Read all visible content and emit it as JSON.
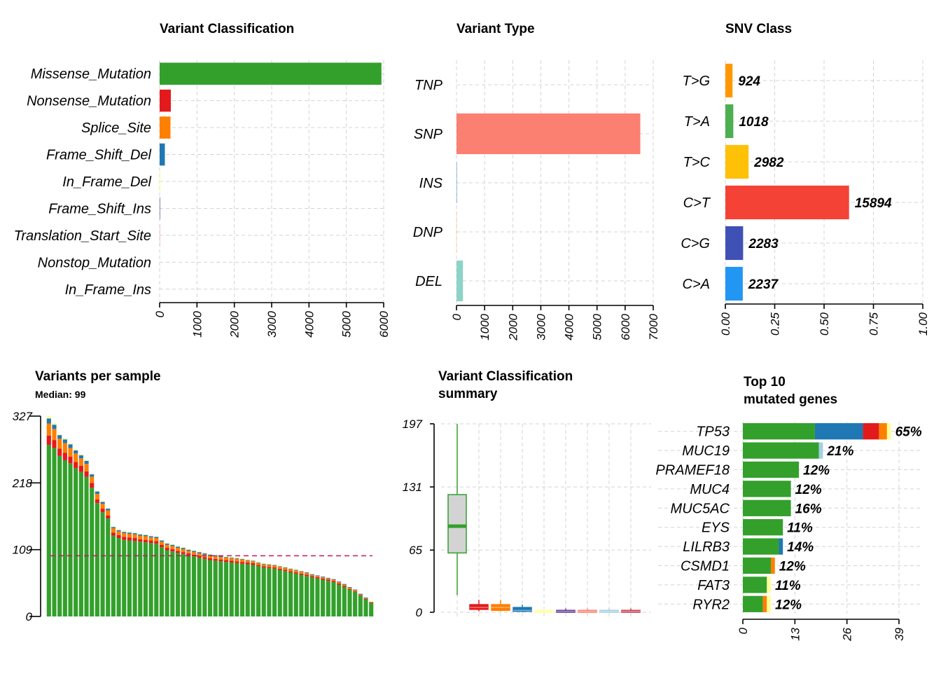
{
  "chart_data": [
    {
      "id": "vc",
      "type": "bar",
      "title": "Variant Classification",
      "categories": [
        "Missense_Mutation",
        "Nonsense_Mutation",
        "Splice_Site",
        "Frame_Shift_Del",
        "In_Frame_Del",
        "Frame_Shift_Ins",
        "Translation_Start_Site",
        "Nonstop_Mutation",
        "In_Frame_Ins"
      ],
      "values": [
        5940,
        300,
        290,
        140,
        20,
        12,
        8,
        2,
        0
      ],
      "colors": [
        "#33a02c",
        "#e31a1c",
        "#ff7f00",
        "#1f78b4",
        "#ffff99",
        "#6a3d9a",
        "#fb8072",
        "#a6cee3",
        "#cab2d6"
      ],
      "xlim": [
        0,
        6000
      ],
      "ticks": [
        0,
        1000,
        2000,
        3000,
        4000,
        5000,
        6000
      ]
    },
    {
      "id": "vt",
      "type": "bar",
      "title": "Variant Type",
      "categories": [
        "TNP",
        "SNP",
        "INS",
        "DNP",
        "DEL"
      ],
      "values": [
        0,
        6540,
        20,
        10,
        230
      ],
      "colors": [
        "#bebada",
        "#fb8072",
        "#80b1d3",
        "#fdb462",
        "#8dd3c7"
      ],
      "xlim": [
        0,
        7000
      ],
      "ticks": [
        0,
        1000,
        2000,
        3000,
        4000,
        5000,
        6000,
        7000
      ]
    },
    {
      "id": "snv",
      "type": "bar",
      "title": "SNV Class",
      "categories": [
        "T>G",
        "T>A",
        "T>C",
        "C>T",
        "C>G",
        "C>A"
      ],
      "counts": [
        "924",
        "1018",
        "2982",
        "15894",
        "2283",
        "2237"
      ],
      "values": [
        0.0364,
        0.0402,
        0.1176,
        0.6266,
        0.09,
        0.0882
      ],
      "colors": [
        "#ff9800",
        "#4caf50",
        "#ffc107",
        "#f44336",
        "#3f51b5",
        "#2196f3"
      ],
      "xlim": [
        0,
        1
      ],
      "ticks": [
        "0.00",
        "0.25",
        "0.50",
        "0.75",
        "1.00"
      ]
    },
    {
      "id": "vps",
      "type": "bar",
      "title": "Variants per sample",
      "subtitle": "Median: 99",
      "ylim": [
        0,
        327
      ],
      "yticks": [
        "0",
        "109",
        "218",
        "327"
      ],
      "median": 99,
      "stack_colors": [
        "#33a02c",
        "#e31a1c",
        "#ff7f00",
        "#1f78b4",
        "#ffff99"
      ],
      "stacks": [
        [
          280,
          15,
          20,
          8,
          4
        ],
        [
          275,
          13,
          18,
          7,
          3
        ],
        [
          262,
          12,
          16,
          6,
          2
        ],
        [
          255,
          12,
          16,
          6,
          2
        ],
        [
          250,
          11,
          14,
          6,
          2
        ],
        [
          242,
          10,
          14,
          5,
          2
        ],
        [
          236,
          10,
          12,
          5,
          2
        ],
        [
          228,
          9,
          12,
          5,
          2
        ],
        [
          210,
          8,
          10,
          4,
          1
        ],
        [
          185,
          6,
          9,
          4,
          1
        ],
        [
          170,
          6,
          8,
          3,
          1
        ],
        [
          160,
          5,
          8,
          3,
          1
        ],
        [
          132,
          5,
          7,
          2,
          1
        ],
        [
          128,
          5,
          6,
          2,
          1
        ],
        [
          125,
          5,
          6,
          2,
          1
        ],
        [
          124,
          5,
          6,
          2,
          1
        ],
        [
          123,
          5,
          6,
          2,
          1
        ],
        [
          122,
          4,
          6,
          2,
          1
        ],
        [
          121,
          4,
          6,
          2,
          1
        ],
        [
          120,
          4,
          5,
          2,
          1
        ],
        [
          119,
          4,
          5,
          2,
          1
        ],
        [
          113,
          4,
          5,
          2,
          1
        ],
        [
          108,
          4,
          5,
          2,
          1
        ],
        [
          106,
          4,
          5,
          2,
          1
        ],
        [
          104,
          3,
          5,
          2,
          1
        ],
        [
          102,
          3,
          5,
          2,
          1
        ],
        [
          100,
          3,
          4,
          2,
          1
        ],
        [
          98,
          3,
          4,
          2,
          1
        ],
        [
          96,
          3,
          4,
          2,
          1
        ],
        [
          94,
          3,
          4,
          2,
          1
        ],
        [
          92,
          3,
          4,
          2,
          1
        ],
        [
          91,
          3,
          4,
          2,
          1
        ],
        [
          90,
          3,
          4,
          2,
          1
        ],
        [
          89,
          3,
          4,
          1,
          1
        ],
        [
          88,
          3,
          4,
          1,
          1
        ],
        [
          87,
          3,
          4,
          1,
          1
        ],
        [
          86,
          3,
          4,
          1,
          1
        ],
        [
          85,
          3,
          3,
          1,
          1
        ],
        [
          84,
          3,
          3,
          1,
          1
        ],
        [
          82,
          2,
          3,
          1,
          1
        ],
        [
          80,
          2,
          3,
          1,
          1
        ],
        [
          79,
          2,
          3,
          1,
          1
        ],
        [
          78,
          2,
          3,
          1,
          1
        ],
        [
          76,
          2,
          3,
          1,
          1
        ],
        [
          74,
          2,
          3,
          1,
          1
        ],
        [
          72,
          2,
          3,
          1,
          1
        ],
        [
          70,
          2,
          3,
          1,
          1
        ],
        [
          68,
          2,
          3,
          1,
          1
        ],
        [
          66,
          2,
          3,
          1,
          0
        ],
        [
          64,
          2,
          2,
          1,
          0
        ],
        [
          62,
          2,
          2,
          1,
          0
        ],
        [
          60,
          2,
          2,
          1,
          0
        ],
        [
          58,
          2,
          2,
          1,
          0
        ],
        [
          56,
          2,
          2,
          1,
          0
        ],
        [
          52,
          2,
          2,
          1,
          0
        ],
        [
          48,
          2,
          2,
          1,
          0
        ],
        [
          44,
          1,
          2,
          1,
          0
        ],
        [
          40,
          1,
          2,
          1,
          0
        ],
        [
          34,
          1,
          1,
          1,
          0
        ],
        [
          28,
          1,
          1,
          1,
          0
        ],
        [
          22,
          1,
          1,
          0,
          0
        ]
      ]
    },
    {
      "id": "vcs",
      "type": "box",
      "title": "Variant Classification",
      "title2": "summary",
      "ylim": [
        0,
        197
      ],
      "yticks": [
        "0",
        "65",
        "131",
        "197"
      ],
      "colors": [
        "#33a02c",
        "#e31a1c",
        "#ff7f00",
        "#1f78b4",
        "#ffff99",
        "#6a3d9a",
        "#fb8072",
        "#a6cee3",
        "#cb4154"
      ],
      "boxes": [
        {
          "min": 18,
          "q1": 62,
          "median": 90,
          "q3": 123,
          "max": 197
        },
        {
          "min": 1,
          "q1": 3,
          "median": 5,
          "q3": 8,
          "max": 13
        },
        {
          "min": 1,
          "q1": 2,
          "median": 5,
          "q3": 8,
          "max": 13
        },
        {
          "min": 0,
          "q1": 1,
          "median": 2,
          "q3": 5,
          "max": 8
        },
        {
          "min": 0,
          "q1": 0,
          "median": 1,
          "q3": 2,
          "max": 4
        },
        {
          "min": 0,
          "q1": 0,
          "median": 1,
          "q3": 2,
          "max": 4
        },
        {
          "min": 0,
          "q1": 0,
          "median": 1,
          "q3": 2,
          "max": 4
        },
        {
          "min": 0,
          "q1": 0,
          "median": 1,
          "q3": 2,
          "max": 4
        },
        {
          "min": 0,
          "q1": 0,
          "median": 1,
          "q3": 2,
          "max": 4
        }
      ]
    },
    {
      "id": "top10",
      "type": "bar",
      "title": "Top 10",
      "title2": "mutated genes",
      "xlim": [
        0,
        39
      ],
      "xticks": [
        "0",
        "13",
        "26",
        "39"
      ],
      "categories": [
        "TP53",
        "MUC19",
        "PRAMEF18",
        "MUC4",
        "MUC5AC",
        "EYS",
        "LILRB3",
        "CSMD1",
        "FAT3",
        "RYR2"
      ],
      "labels": [
        "65%",
        "21%",
        "12%",
        "12%",
        "16%",
        "11%",
        "14%",
        "12%",
        "11%",
        "12%"
      ],
      "stack_colors": [
        "#33a02c",
        "#1f78b4",
        "#e31a1c",
        "#ff7f00",
        "#ffff99",
        "#a6cee3"
      ],
      "stacks": [
        [
          18,
          12,
          4,
          2,
          1,
          0
        ],
        [
          19,
          0,
          0,
          0,
          0,
          1
        ],
        [
          14,
          0,
          0,
          0,
          0,
          0
        ],
        [
          12,
          0,
          0,
          0,
          0,
          0
        ],
        [
          12,
          0,
          0,
          0,
          0,
          0
        ],
        [
          10,
          0,
          0,
          0,
          0,
          0
        ],
        [
          9,
          1,
          0,
          0,
          0,
          0
        ],
        [
          7,
          0,
          0,
          1,
          0,
          0
        ],
        [
          6,
          0,
          0,
          0,
          1,
          0
        ],
        [
          5,
          0,
          0,
          1,
          1,
          0
        ]
      ]
    }
  ]
}
